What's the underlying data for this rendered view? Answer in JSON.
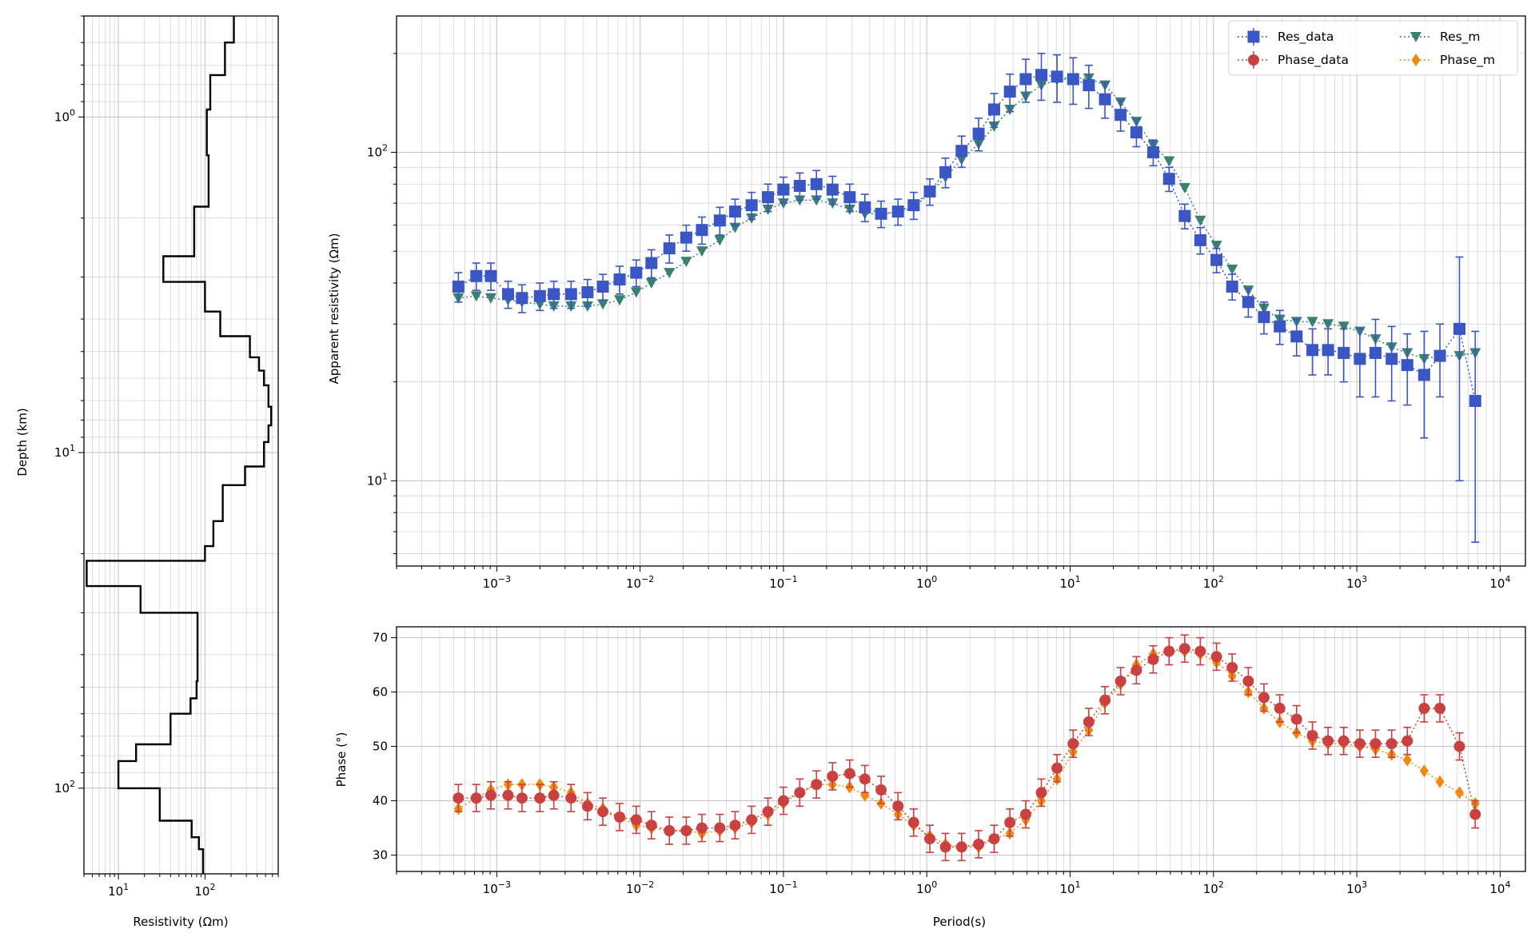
{
  "colors": {
    "res_data": "#3a55c4",
    "res_m": "#3a7f73",
    "phase_data": "#c94141",
    "phase_m": "#f08a0e",
    "model": "#000000",
    "grid": "#c0c0c0"
  },
  "chart_data": [
    {
      "type": "line",
      "name": "resistivity-depth-model",
      "xlabel": "Resistivity (Ωm)",
      "ylabel": "Depth (km)",
      "xscale": "log",
      "yscale": "log",
      "yinverted": true,
      "xlim": [
        4,
        700
      ],
      "ylim": [
        0.5,
        180
      ],
      "grid": true,
      "xticks": [
        {
          "base": "10",
          "exp": "1",
          "value": 10
        },
        {
          "base": "10",
          "exp": "2",
          "value": 100
        }
      ],
      "yticks": [
        {
          "base": "10",
          "exp": "0",
          "value": 1
        },
        {
          "base": "10",
          "exp": "1",
          "value": 10
        },
        {
          "base": "10",
          "exp": "2",
          "value": 100
        }
      ],
      "profile": [
        [
          215,
          0.5
        ],
        [
          215,
          0.6
        ],
        [
          170,
          0.6
        ],
        [
          170,
          0.75
        ],
        [
          115,
          0.75
        ],
        [
          115,
          0.95
        ],
        [
          105,
          0.95
        ],
        [
          105,
          1.3
        ],
        [
          110,
          1.3
        ],
        [
          110,
          1.85
        ],
        [
          75,
          1.85
        ],
        [
          75,
          2.6
        ],
        [
          33,
          2.6
        ],
        [
          33,
          3.1
        ],
        [
          100,
          3.1
        ],
        [
          100,
          3.8
        ],
        [
          150,
          3.8
        ],
        [
          150,
          4.5
        ],
        [
          330,
          4.5
        ],
        [
          330,
          5.2
        ],
        [
          420,
          5.2
        ],
        [
          420,
          5.7
        ],
        [
          480,
          5.7
        ],
        [
          480,
          6.3
        ],
        [
          540,
          6.3
        ],
        [
          540,
          7.3
        ],
        [
          580,
          7.3
        ],
        [
          580,
          8.3
        ],
        [
          540,
          8.3
        ],
        [
          540,
          9.3
        ],
        [
          480,
          9.3
        ],
        [
          480,
          11
        ],
        [
          290,
          11
        ],
        [
          290,
          12.5
        ],
        [
          160,
          12.5
        ],
        [
          160,
          16
        ],
        [
          125,
          16
        ],
        [
          125,
          19
        ],
        [
          100,
          19
        ],
        [
          100,
          21
        ],
        [
          4.3,
          21
        ],
        [
          4.3,
          25
        ],
        [
          18,
          25
        ],
        [
          18,
          30
        ],
        [
          82,
          30
        ],
        [
          82,
          48
        ],
        [
          80,
          48
        ],
        [
          80,
          54
        ],
        [
          68,
          54
        ],
        [
          68,
          60
        ],
        [
          40,
          60
        ],
        [
          40,
          74
        ],
        [
          16,
          74
        ],
        [
          16,
          83
        ],
        [
          10,
          83
        ],
        [
          10,
          100
        ],
        [
          30,
          100
        ],
        [
          30,
          125
        ],
        [
          70,
          125
        ],
        [
          70,
          140
        ],
        [
          85,
          140
        ],
        [
          85,
          152
        ],
        [
          95,
          152
        ],
        [
          95,
          180
        ]
      ]
    },
    {
      "type": "scatter",
      "name": "apparent-resistivity",
      "xlabel": "",
      "ylabel": "Apparent resistivity (Ωm)",
      "xscale": "log",
      "yscale": "log",
      "xlim": [
        0.0002,
        15000
      ],
      "ylim": [
        5.5,
        260
      ],
      "grid": true,
      "legend_position": "top-right",
      "legend": [
        "Res_data",
        "Res_m",
        "Phase_data",
        "Phase_m"
      ],
      "xticks": [
        {
          "base": "10",
          "exp": "−3",
          "value": 0.001
        },
        {
          "base": "10",
          "exp": "−2",
          "value": 0.01
        },
        {
          "base": "10",
          "exp": "−1",
          "value": 0.1
        },
        {
          "base": "10",
          "exp": "0",
          "value": 1
        },
        {
          "base": "10",
          "exp": "1",
          "value": 10
        },
        {
          "base": "10",
          "exp": "2",
          "value": 100
        },
        {
          "base": "10",
          "exp": "3",
          "value": 1000
        },
        {
          "base": "10",
          "exp": "4",
          "value": 10000
        }
      ],
      "yticks": [
        {
          "base": "10",
          "exp": "1",
          "value": 10
        },
        {
          "base": "10",
          "exp": "2",
          "value": 100
        }
      ],
      "x": [
        0.00054,
        0.00072,
        0.00091,
        0.0012,
        0.0015,
        0.002,
        0.0025,
        0.0033,
        0.0043,
        0.0055,
        0.0072,
        0.0094,
        0.012,
        0.016,
        0.021,
        0.027,
        0.036,
        0.046,
        0.06,
        0.078,
        0.1,
        0.13,
        0.17,
        0.22,
        0.29,
        0.37,
        0.48,
        0.63,
        0.81,
        1.05,
        1.35,
        1.75,
        2.3,
        2.95,
        3.8,
        4.9,
        6.3,
        8.1,
        10.5,
        13.5,
        17.5,
        22.5,
        29,
        38,
        49,
        63,
        81,
        105,
        135,
        175,
        225,
        290,
        380,
        490,
        630,
        810,
        1050,
        1350,
        1750,
        2250,
        2950,
        3800,
        5200,
        6700
      ],
      "series": [
        {
          "name": "Res_data",
          "marker": "square",
          "values": [
            39,
            42,
            42,
            37,
            36,
            36.5,
            37,
            37,
            37.5,
            39,
            41,
            43,
            46,
            51,
            55,
            58,
            62,
            66,
            69,
            73,
            77,
            79,
            80,
            77,
            73,
            68,
            65,
            66,
            69,
            76,
            87,
            101,
            114,
            135,
            153,
            167,
            172,
            170,
            167,
            160,
            145,
            130,
            115,
            100,
            83,
            64,
            54,
            47,
            39,
            35,
            31.5,
            29.5,
            27.5,
            25,
            25,
            24.5,
            23.5,
            24.5,
            23.5,
            22.5,
            21,
            24,
            29,
            17.5
          ],
          "err": [
            4,
            4,
            4,
            3.5,
            3.5,
            3.5,
            3.5,
            3.5,
            3.5,
            3.5,
            4,
            4,
            4.5,
            5,
            5,
            5.5,
            6,
            6,
            6.5,
            7,
            7,
            7.5,
            8,
            7.5,
            7,
            6.5,
            6,
            6,
            6.5,
            7,
            9,
            11,
            13,
            16,
            20,
            25,
            28,
            28,
            27,
            24,
            18,
            14,
            11,
            9,
            7,
            5.5,
            5,
            4,
            3.5,
            3.5,
            3.5,
            3.5,
            3.5,
            4,
            4,
            4.5,
            5.5,
            6.5,
            6,
            5.5,
            7.5,
            6,
            19,
            11
          ]
        },
        {
          "name": "Res_m",
          "marker": "triangle",
          "values": [
            36,
            36.5,
            36,
            35.5,
            35,
            34.5,
            34,
            34,
            34,
            34.5,
            35.5,
            37.5,
            40,
            43,
            46.5,
            50,
            54,
            59,
            63,
            67,
            70,
            71.5,
            71.5,
            70,
            67,
            65,
            65,
            65.5,
            68,
            75,
            84,
            95,
            106,
            120,
            135,
            148,
            160,
            166,
            168,
            168,
            160,
            142,
            124,
            105,
            94,
            78,
            62,
            52,
            44,
            38,
            33.5,
            31,
            30.5,
            30.5,
            30,
            29.5,
            28.5,
            27,
            25.5,
            24.5,
            23.5,
            24,
            24,
            24.5
          ]
        }
      ]
    },
    {
      "type": "scatter",
      "name": "phase",
      "xlabel": "Period(s)",
      "ylabel": "Phase (°)",
      "xscale": "log",
      "yscale": "linear",
      "xlim": [
        0.0002,
        15000
      ],
      "ylim": [
        27,
        72
      ],
      "grid": true,
      "xticks": [
        {
          "base": "10",
          "exp": "−3",
          "value": 0.001
        },
        {
          "base": "10",
          "exp": "−2",
          "value": 0.01
        },
        {
          "base": "10",
          "exp": "−1",
          "value": 0.1
        },
        {
          "base": "10",
          "exp": "0",
          "value": 1
        },
        {
          "base": "10",
          "exp": "1",
          "value": 10
        },
        {
          "base": "10",
          "exp": "2",
          "value": 100
        },
        {
          "base": "10",
          "exp": "3",
          "value": 1000
        },
        {
          "base": "10",
          "exp": "4",
          "value": 10000
        }
      ],
      "yticks": [
        {
          "label": "30",
          "value": 30
        },
        {
          "label": "40",
          "value": 40
        },
        {
          "label": "50",
          "value": 50
        },
        {
          "label": "60",
          "value": 60
        },
        {
          "label": "70",
          "value": 70
        }
      ],
      "x": [
        0.00054,
        0.00072,
        0.00091,
        0.0012,
        0.0015,
        0.002,
        0.0025,
        0.0033,
        0.0043,
        0.0055,
        0.0072,
        0.0094,
        0.012,
        0.016,
        0.021,
        0.027,
        0.036,
        0.046,
        0.06,
        0.078,
        0.1,
        0.13,
        0.17,
        0.22,
        0.29,
        0.37,
        0.48,
        0.63,
        0.81,
        1.05,
        1.35,
        1.75,
        2.3,
        2.95,
        3.8,
        4.9,
        6.3,
        8.1,
        10.5,
        13.5,
        17.5,
        22.5,
        29,
        38,
        49,
        63,
        81,
        105,
        135,
        175,
        225,
        290,
        380,
        490,
        630,
        810,
        1050,
        1350,
        1750,
        2250,
        2950,
        3800,
        5200,
        6700
      ],
      "series": [
        {
          "name": "Phase_data",
          "marker": "circle",
          "values": [
            40.5,
            40.5,
            41,
            41,
            40.5,
            40.5,
            41,
            40.5,
            39,
            38,
            37,
            36.5,
            35.5,
            34.5,
            34.5,
            35,
            35,
            35.5,
            36.5,
            38,
            40,
            41.5,
            43,
            44.5,
            45,
            44,
            42,
            39,
            36,
            33,
            31.5,
            31.5,
            32,
            33,
            36,
            37.5,
            41.5,
            46,
            50.5,
            54.5,
            58.5,
            62,
            64,
            66,
            67.5,
            68,
            67.5,
            66.5,
            64.5,
            62,
            59,
            57,
            55,
            52,
            51,
            51,
            50.5,
            50.5,
            50.5,
            51,
            57,
            57,
            50,
            37.5
          ],
          "err": [
            2.5,
            2.5,
            2.5,
            2.5,
            2.5,
            2.5,
            2.5,
            2.5,
            2.5,
            2.5,
            2.5,
            2.5,
            2.5,
            2.5,
            2.5,
            2.5,
            2.5,
            2.5,
            2.5,
            2.5,
            2.5,
            2.5,
            2.5,
            2.5,
            2.5,
            2.5,
            2.5,
            2.5,
            2.5,
            2.5,
            2.5,
            2.5,
            2.5,
            2.5,
            2.5,
            2.5,
            2.5,
            2.5,
            2.5,
            2.5,
            2.5,
            2.5,
            2.5,
            2.5,
            2.5,
            2.5,
            2.5,
            2.5,
            2.5,
            2.5,
            2.5,
            2.5,
            2.5,
            2.5,
            2.5,
            2.5,
            2.5,
            2.5,
            2.5,
            2.5,
            2.5,
            2.5,
            2.5,
            2.5
          ]
        },
        {
          "name": "Phase_m",
          "marker": "diamond",
          "values": [
            38.5,
            40.5,
            42,
            43,
            43,
            43,
            42.5,
            41.5,
            39.5,
            38.5,
            37,
            35.5,
            35,
            34.5,
            34.5,
            34,
            34.5,
            35,
            36,
            37.5,
            39.5,
            41.5,
            43,
            43,
            42.5,
            41,
            39.5,
            37.5,
            35.5,
            33.5,
            32,
            31.5,
            31.5,
            33,
            34,
            36.5,
            40,
            44,
            49,
            53,
            58,
            61.5,
            65,
            67,
            67.5,
            67.5,
            67,
            65.5,
            63,
            60,
            57,
            54.5,
            52.5,
            51,
            50.5,
            50.5,
            50,
            49.5,
            48.5,
            47.5,
            45.5,
            43.5,
            41.5,
            39.5
          ]
        }
      ]
    }
  ]
}
